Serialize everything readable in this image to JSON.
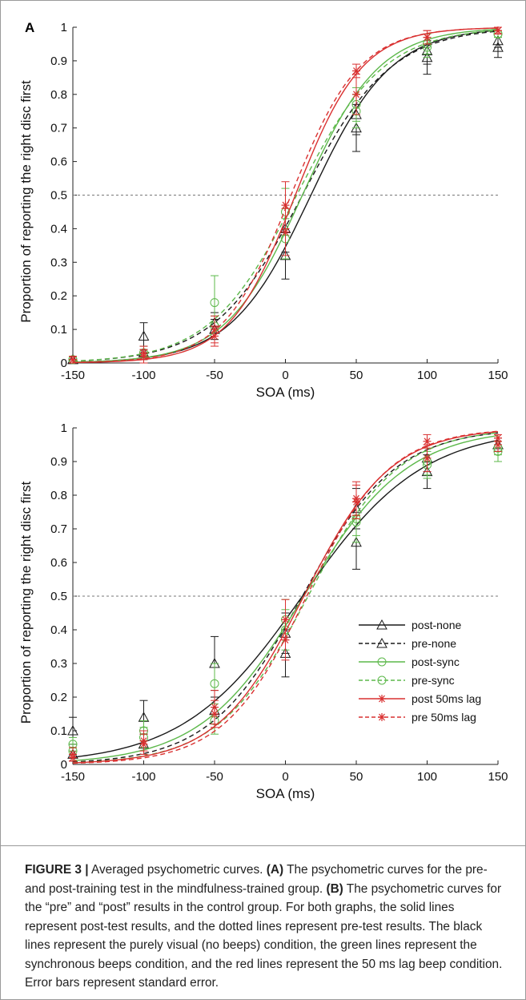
{
  "chart_data": [
    {
      "panel": "A",
      "type": "line",
      "xlabel": "SOA (ms)",
      "ylabel": "Proportion of reporting the right disc first",
      "xlim": [
        -150,
        150
      ],
      "ylim": [
        0,
        1
      ],
      "xticks": [
        "-150",
        "-100",
        "-50",
        "0",
        "50",
        "100",
        "150"
      ],
      "yticks": [
        "0",
        "0.1",
        "0.2",
        "0.3",
        "0.4",
        "0.5",
        "0.6",
        "0.7",
        "0.8",
        "0.9",
        "1"
      ],
      "reference_line_y": 0.5,
      "x": [
        -150,
        -100,
        -50,
        0,
        50,
        100,
        150
      ],
      "series": [
        {
          "name": "post-none",
          "color": "#1a1a1a",
          "dash": false,
          "marker": "triangle",
          "mu": 18,
          "sigma": 48,
          "values": [
            0.01,
            0.03,
            0.1,
            0.32,
            0.7,
            0.91,
            0.94
          ],
          "err": [
            0.01,
            0.02,
            0.03,
            0.07,
            0.07,
            0.05,
            0.03
          ]
        },
        {
          "name": "pre-none",
          "color": "#1a1a1a",
          "dash": true,
          "marker": "triangle",
          "mu": 12,
          "sigma": 53,
          "values": [
            0.01,
            0.08,
            0.12,
            0.4,
            0.74,
            0.93,
            0.96
          ],
          "err": [
            0.01,
            0.04,
            0.03,
            0.07,
            0.06,
            0.04,
            0.02
          ]
        },
        {
          "name": "post-sync",
          "color": "#5cb84a",
          "dash": false,
          "marker": "circle",
          "mu": 12,
          "sigma": 46,
          "values": [
            0.01,
            0.03,
            0.11,
            0.37,
            0.75,
            0.94,
            0.98
          ],
          "err": [
            0.01,
            0.02,
            0.03,
            0.06,
            0.05,
            0.03,
            0.01
          ]
        },
        {
          "name": "pre-sync",
          "color": "#5cb84a",
          "dash": true,
          "marker": "circle",
          "mu": 8,
          "sigma": 52,
          "values": [
            0.01,
            0.03,
            0.18,
            0.45,
            0.77,
            0.95,
            0.98
          ],
          "err": [
            0.01,
            0.02,
            0.08,
            0.07,
            0.05,
            0.03,
            0.01
          ]
        },
        {
          "name": "post 50ms lag",
          "color": "#d93030",
          "dash": false,
          "marker": "star",
          "mu": 7,
          "sigma": 40,
          "values": [
            0.01,
            0.02,
            0.1,
            0.39,
            0.8,
            0.97,
            0.99
          ],
          "err": [
            0.01,
            0.02,
            0.04,
            0.07,
            0.06,
            0.02,
            0.01
          ]
        },
        {
          "name": "pre 50ms lag",
          "color": "#d93030",
          "dash": true,
          "marker": "star",
          "mu": 4,
          "sigma": 41,
          "values": [
            0.01,
            0.03,
            0.08,
            0.47,
            0.87,
            0.97,
            0.99
          ],
          "err": [
            0.01,
            0.02,
            0.03,
            0.07,
            0.02,
            0.02,
            0.01
          ]
        }
      ]
    },
    {
      "panel": "B",
      "type": "line",
      "xlabel": "SOA (ms)",
      "ylabel": "Proportion of reporting the right disc first",
      "xlim": [
        -150,
        150
      ],
      "ylim": [
        0,
        1
      ],
      "xticks": [
        "-150",
        "-100",
        "-50",
        "0",
        "50",
        "100",
        "150"
      ],
      "yticks": [
        "0",
        "0.1",
        "0.2",
        "0.3",
        "0.4",
        "0.5",
        "0.6",
        "0.7",
        "0.8",
        "0.9",
        "1"
      ],
      "reference_line_y": 0.5,
      "x": [
        -150,
        -100,
        -50,
        0,
        50,
        100,
        150
      ],
      "legend": {
        "placement": "lower-right"
      },
      "series": [
        {
          "name": "post-none",
          "color": "#1a1a1a",
          "dash": false,
          "marker": "triangle",
          "mu": 12,
          "sigma": 72,
          "values": [
            0.1,
            0.14,
            0.3,
            0.33,
            0.66,
            0.87,
            0.95
          ],
          "err": [
            0.04,
            0.05,
            0.08,
            0.07,
            0.08,
            0.05,
            0.02
          ]
        },
        {
          "name": "pre-none",
          "color": "#1a1a1a",
          "dash": true,
          "marker": "triangle",
          "mu": 12,
          "sigma": 56,
          "values": [
            0.03,
            0.06,
            0.16,
            0.39,
            0.76,
            0.91,
            0.95
          ],
          "err": [
            0.02,
            0.03,
            0.04,
            0.06,
            0.06,
            0.04,
            0.02
          ]
        },
        {
          "name": "post-sync",
          "color": "#5cb84a",
          "dash": false,
          "marker": "circle",
          "mu": 13,
          "sigma": 62,
          "values": [
            0.06,
            0.1,
            0.24,
            0.43,
            0.72,
            0.9,
            0.93
          ],
          "err": [
            0.02,
            0.03,
            0.06,
            0.06,
            0.06,
            0.04,
            0.03
          ]
        },
        {
          "name": "pre-sync",
          "color": "#5cb84a",
          "dash": true,
          "marker": "circle",
          "mu": 16,
          "sigma": 54,
          "values": [
            0.04,
            0.08,
            0.13,
            0.4,
            0.73,
            0.89,
            0.94
          ],
          "err": [
            0.02,
            0.03,
            0.04,
            0.06,
            0.05,
            0.04,
            0.02
          ]
        },
        {
          "name": "post 50ms lag",
          "color": "#d93030",
          "dash": false,
          "marker": "star",
          "mu": 13,
          "sigma": 52,
          "values": [
            0.03,
            0.06,
            0.17,
            0.43,
            0.78,
            0.91,
            0.95
          ],
          "err": [
            0.02,
            0.03,
            0.05,
            0.06,
            0.05,
            0.04,
            0.02
          ]
        },
        {
          "name": "pre 50ms lag",
          "color": "#d93030",
          "dash": true,
          "marker": "star",
          "mu": 15,
          "sigma": 50,
          "values": [
            0.02,
            0.07,
            0.15,
            0.37,
            0.79,
            0.96,
            0.97
          ],
          "err": [
            0.01,
            0.03,
            0.04,
            0.06,
            0.05,
            0.02,
            0.01
          ]
        }
      ]
    }
  ],
  "panels": {
    "a_letter": "A",
    "b_letter": "B"
  },
  "caption": {
    "figure_label": "FIGURE 3 |",
    "title": " Averaged psychometric curves. ",
    "a_ref": "(A)",
    "a_text": " The psychometric curves for the pre- and post-training test in the mindfulness-trained group. ",
    "b_ref": "(B)",
    "b_text": " The psychometric curves for the “pre” and “post” results in the control group. For both graphs, the solid lines represent post-test results, and the dotted lines represent pre-test results. The black lines represent the purely visual (no beeps) condition, the green lines represent the synchronous beeps condition, and the red lines represent the 50 ms lag beep condition. Error bars represent standard error."
  }
}
